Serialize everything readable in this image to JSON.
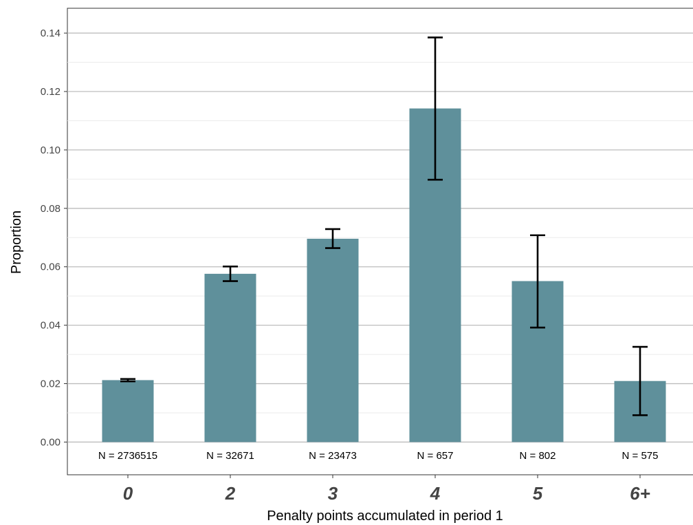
{
  "chart_data": {
    "type": "bar",
    "categories": [
      "0",
      "2",
      "3",
      "4",
      "5",
      "6+"
    ],
    "values": [
      0.0212,
      0.0576,
      0.0696,
      0.1142,
      0.0551,
      0.0209
    ],
    "error_low": [
      0.0208,
      0.0551,
      0.0664,
      0.0898,
      0.0392,
      0.0092
    ],
    "error_high": [
      0.0216,
      0.0601,
      0.0729,
      0.1385,
      0.0708,
      0.0326
    ],
    "n_labels": [
      "N =  2736515",
      "N =  32671",
      "N =  23473",
      "N =  657",
      "N =  802",
      "N =  575"
    ],
    "xlabel": "Penalty points accumulated in period 1",
    "ylabel": "Proportion",
    "ylim": [
      -0.0112,
      0.1485
    ],
    "yticks": [
      0.0,
      0.02,
      0.04,
      0.06,
      0.08,
      0.1,
      0.12,
      0.14
    ],
    "ytick_labels": [
      "0.00",
      "0.02",
      "0.04",
      "0.06",
      "0.08",
      "0.10",
      "0.12",
      "0.14"
    ],
    "grid": true,
    "bar_color": "#5f909b",
    "error_color": "#000000"
  }
}
